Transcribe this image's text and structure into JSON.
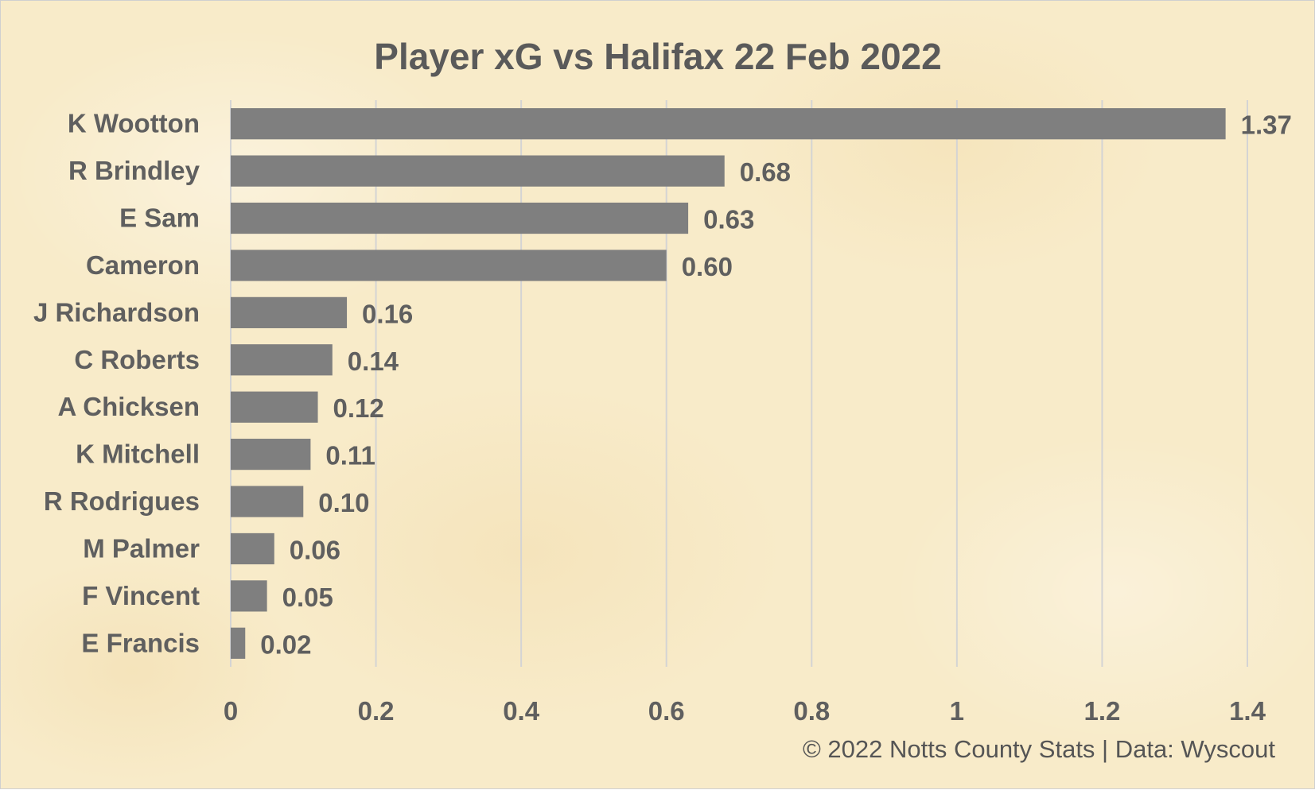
{
  "chart_data": {
    "type": "bar",
    "orientation": "horizontal",
    "title": "Player xG vs Halifax 22 Feb 2022",
    "categories": [
      "K Wootton",
      "R Brindley",
      "E Sam",
      "Cameron",
      "J Richardson",
      "C Roberts",
      "A Chicksen",
      "K Mitchell",
      "R Rodrigues",
      "M Palmer",
      "F Vincent",
      "E Francis"
    ],
    "values": [
      1.37,
      0.68,
      0.63,
      0.6,
      0.16,
      0.14,
      0.12,
      0.11,
      0.1,
      0.06,
      0.05,
      0.02
    ],
    "data_labels": [
      "1.37",
      "0.68",
      "0.63",
      "0.60",
      "0.16",
      "0.14",
      "0.12",
      "0.11",
      "0.10",
      "0.06",
      "0.05",
      "0.02"
    ],
    "xlim": [
      0,
      1.4
    ],
    "ticks": [
      0,
      0.2,
      0.4,
      0.6,
      0.8,
      1,
      1.2,
      1.4
    ],
    "tick_labels": [
      "0",
      "0.2",
      "0.4",
      "0.6",
      "0.8",
      "1",
      "1.2",
      "1.4"
    ],
    "xlabel": "",
    "ylabel": "",
    "grid": "vertical",
    "legend": "none",
    "footer": "© 2022 Notts County Stats | Data: Wyscout",
    "colors": {
      "bar": "#7f7f7f",
      "background": "#f8ebc9",
      "gridline": "#d4d4d4",
      "text": "#5f5f5f"
    }
  }
}
